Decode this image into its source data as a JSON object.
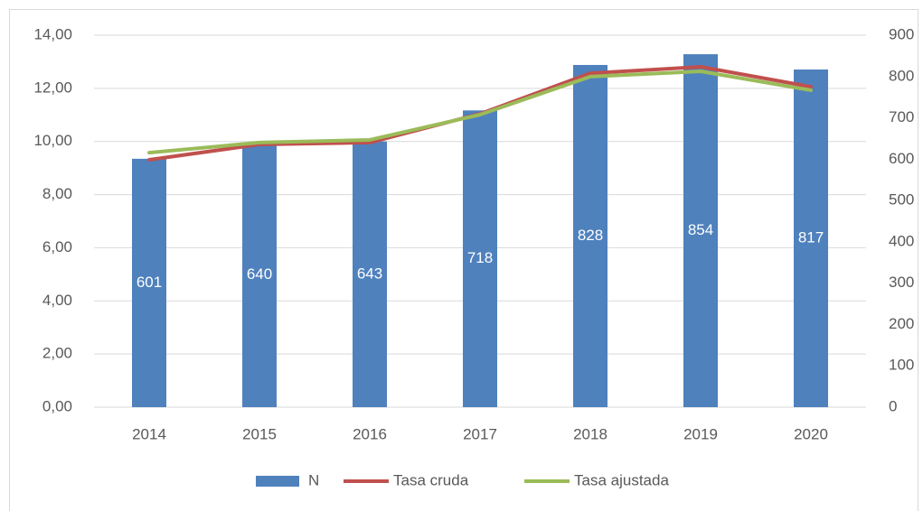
{
  "chart_data": {
    "type": "bar_line",
    "categories": [
      "2014",
      "2015",
      "2016",
      "2017",
      "2018",
      "2019",
      "2020"
    ],
    "series": [
      {
        "name": "N",
        "type": "bar",
        "axis": "y2",
        "color": "#4f81bd",
        "values": [
          601,
          640,
          643,
          718,
          828,
          854,
          817
        ]
      },
      {
        "name": "Tasa cruda",
        "type": "line",
        "axis": "y",
        "color": "#c0504d",
        "values": [
          9.31,
          9.89,
          9.96,
          11.04,
          12.57,
          12.81,
          12.06
        ]
      },
      {
        "name": "Tasa ajustada",
        "type": "line",
        "axis": "y",
        "color": "#9bbb59",
        "values": [
          9.58,
          9.96,
          10.06,
          11.01,
          12.44,
          12.64,
          11.93
        ]
      }
    ],
    "ylim": [
      0,
      14
    ],
    "yticks": [
      {
        "value": 0,
        "label": "0,00"
      },
      {
        "value": 2,
        "label": "2,00"
      },
      {
        "value": 4,
        "label": "4,00"
      },
      {
        "value": 6,
        "label": "6,00"
      },
      {
        "value": 8,
        "label": "8,00"
      },
      {
        "value": 10,
        "label": "10,00"
      },
      {
        "value": 12,
        "label": "12,00"
      },
      {
        "value": 14,
        "label": "14,00"
      }
    ],
    "y2lim": [
      0,
      900
    ],
    "y2ticks": [
      0,
      100,
      200,
      300,
      400,
      500,
      600,
      700,
      800,
      900
    ],
    "grid": true,
    "legend": "bottom"
  }
}
